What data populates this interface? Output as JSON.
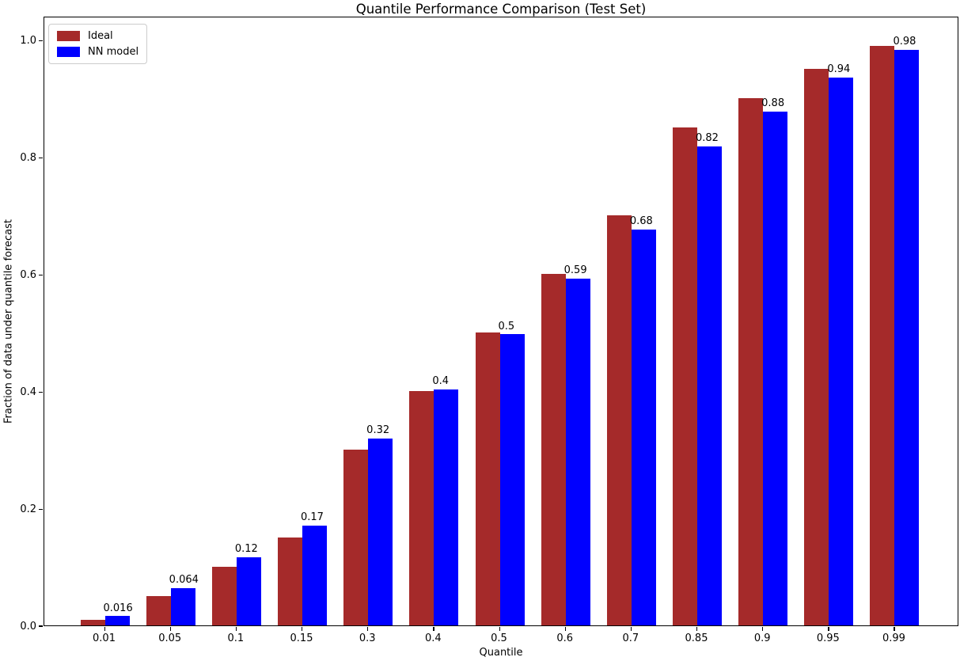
{
  "chart_data": {
    "type": "bar",
    "title": "Quantile Performance Comparison (Test Set)",
    "xlabel": "Quantile",
    "ylabel": "Fraction of data under quantile forecast",
    "categories": [
      "0.01",
      "0.05",
      "0.1",
      "0.15",
      "0.3",
      "0.4",
      "0.5",
      "0.6",
      "0.7",
      "0.85",
      "0.9",
      "0.95",
      "0.99"
    ],
    "series": [
      {
        "name": "Ideal",
        "color": "#a52a2a",
        "values": [
          0.01,
          0.05,
          0.1,
          0.15,
          0.3,
          0.4,
          0.5,
          0.6,
          0.7,
          0.85,
          0.9,
          0.95,
          0.99
        ]
      },
      {
        "name": "NN model",
        "color": "#0000ff",
        "values": [
          0.016,
          0.064,
          0.117,
          0.171,
          0.319,
          0.403,
          0.497,
          0.592,
          0.676,
          0.818,
          0.878,
          0.936,
          0.983
        ],
        "point_labels": [
          "0.016",
          "0.064",
          "0.12",
          "0.17",
          "0.32",
          "0.4",
          "0.5",
          "0.59",
          "0.68",
          "0.82",
          "0.88",
          "0.94",
          "0.98"
        ]
      }
    ],
    "yticks": [
      "0.0",
      "0.2",
      "0.4",
      "0.6",
      "0.8",
      "1.0"
    ],
    "ytick_values": [
      0.0,
      0.2,
      0.4,
      0.6,
      0.8,
      1.0
    ],
    "ylim": [
      0,
      1.041
    ],
    "grid": false,
    "legend_position": "upper-left",
    "bar_value_label_offset": 0.005
  }
}
